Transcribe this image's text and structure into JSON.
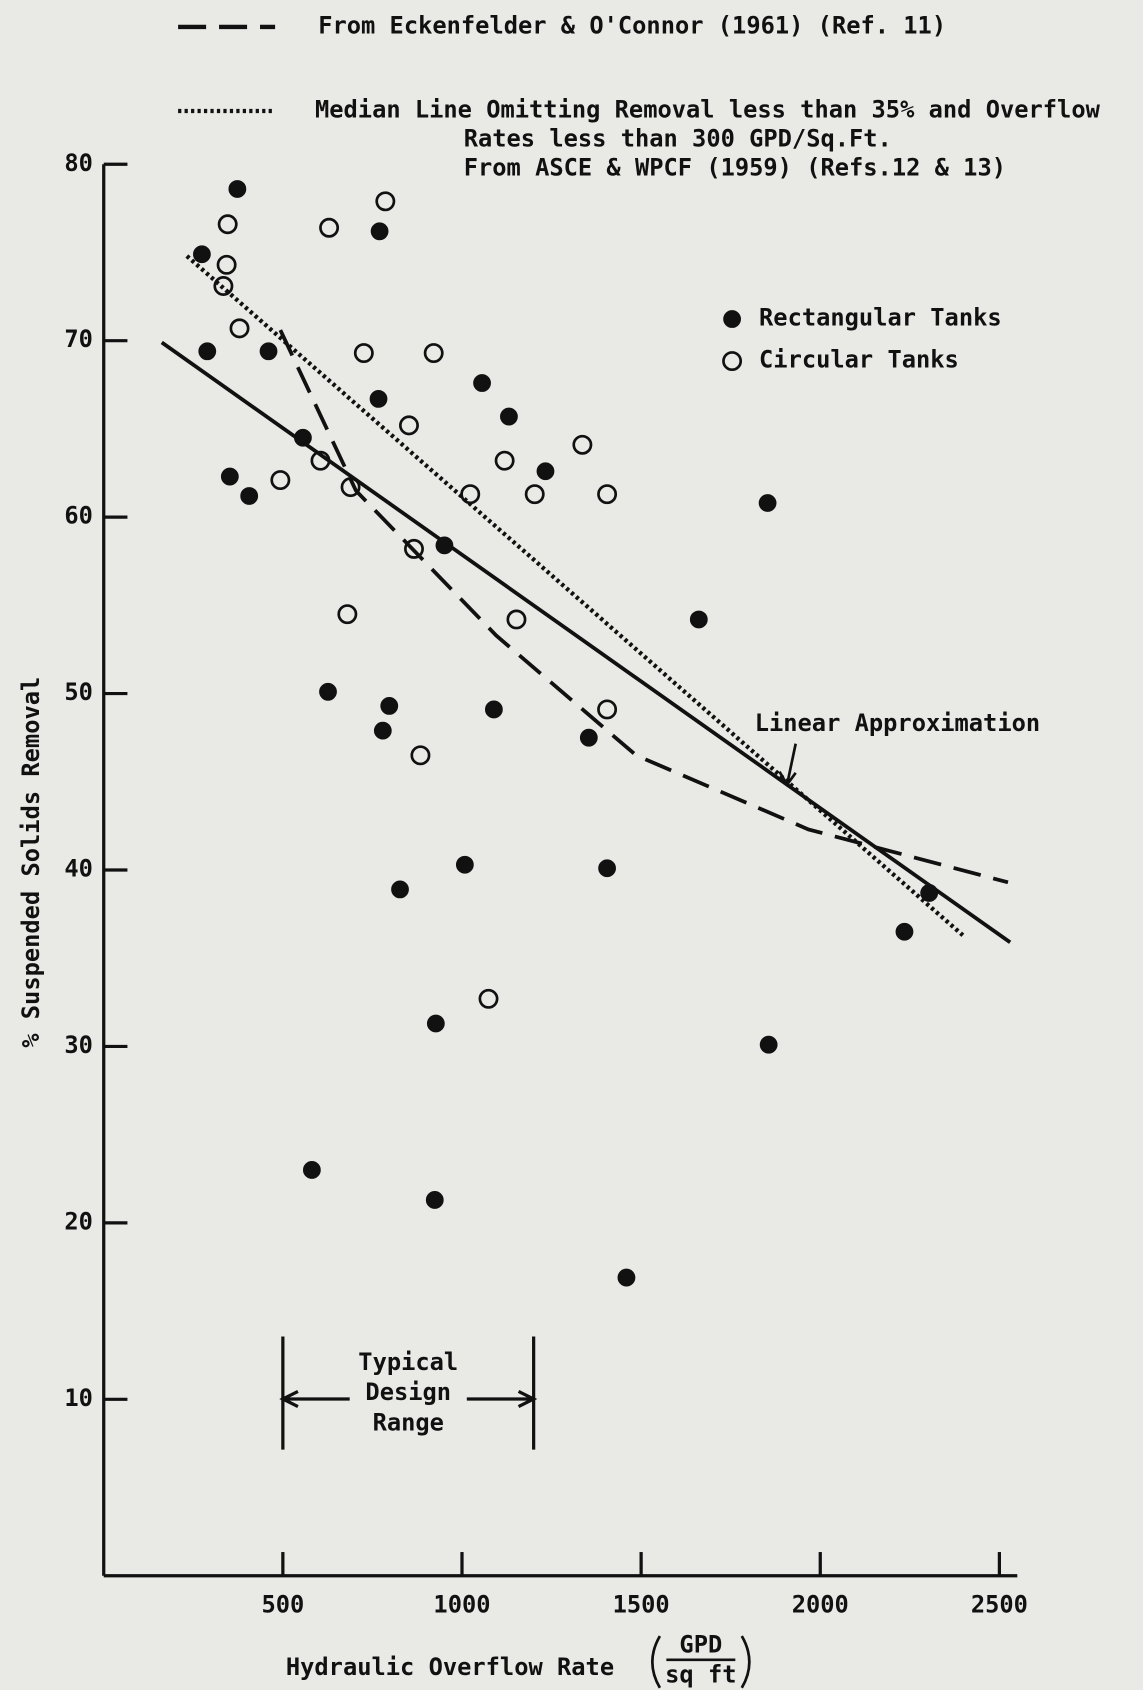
{
  "chart_data": {
    "type": "scatter",
    "xlabel": "Hydraulic Overflow Rate",
    "xlabel_unit": [
      "GPD",
      "sq ft"
    ],
    "ylabel": "% Suspended Solids Removal",
    "xlim": [
      0,
      2550
    ],
    "ylim": [
      0,
      80
    ],
    "xticks": [
      500,
      1000,
      1500,
      2000,
      2500
    ],
    "yticks": [
      10,
      20,
      30,
      40,
      50,
      60,
      70,
      80
    ],
    "series": [
      {
        "name": "Rectangular Tanks",
        "marker": "filled",
        "color": "#111111",
        "x": [
          274,
          373,
          289,
          352,
          406,
          460,
          556,
          770,
          767,
          1056,
          1131,
          1233,
          951,
          626,
          797,
          779,
          1089,
          1661,
          1354,
          1853,
          1008,
          827,
          1405,
          2304,
          2235,
          1856,
          927,
          581,
          924,
          1459
        ],
        "y": [
          74.9,
          78.6,
          69.4,
          62.3,
          61.2,
          69.4,
          64.5,
          76.2,
          66.7,
          67.6,
          65.7,
          62.6,
          58.4,
          50.1,
          49.3,
          47.9,
          49.1,
          54.2,
          47.5,
          60.8,
          40.3,
          38.9,
          40.1,
          38.7,
          36.5,
          30.1,
          31.3,
          23.0,
          21.3,
          16.9
        ]
      },
      {
        "name": "Circular Tanks",
        "marker": "open",
        "color": "#111111",
        "x": [
          346,
          343,
          334,
          379,
          629,
          786,
          726,
          921,
          852,
          493,
          605,
          689,
          1023,
          1119,
          1203,
          1336,
          1405,
          866,
          680,
          1152,
          1405,
          884,
          1074
        ],
        "y": [
          76.6,
          74.3,
          73.1,
          70.7,
          76.4,
          77.9,
          69.3,
          69.3,
          65.2,
          62.1,
          63.2,
          61.7,
          61.3,
          63.2,
          61.3,
          64.1,
          61.3,
          58.2,
          54.5,
          54.2,
          49.1,
          46.5,
          32.7
        ]
      }
    ],
    "lines": [
      {
        "name": [
          "From Eckenfelder & O'Connor (1961) (Ref. 11)"
        ],
        "style": "dashed",
        "x": [
          493,
          704,
          1095,
          1486,
          1967,
          2524
        ],
        "y": [
          70.6,
          61.5,
          53.3,
          46.5,
          42.3,
          39.3
        ]
      },
      {
        "name": [
          "Median Line Omitting Removal less than 35% and Overflow",
          "Rates less than 300 GPD/Sq.Ft.",
          "From ASCE & WPCF (1959) (Refs.12 & 13)"
        ],
        "style": "dotted",
        "x": [
          232,
          2398
        ],
        "y": [
          74.8,
          36.3
        ]
      },
      {
        "name": [
          "Linear Approximation"
        ],
        "style": "solid",
        "x": [
          162,
          2530
        ],
        "y": [
          69.9,
          35.9
        ]
      }
    ],
    "design_range": {
      "label": [
        "Typical",
        "Design",
        "Range"
      ],
      "x": [
        500,
        1200
      ]
    }
  }
}
